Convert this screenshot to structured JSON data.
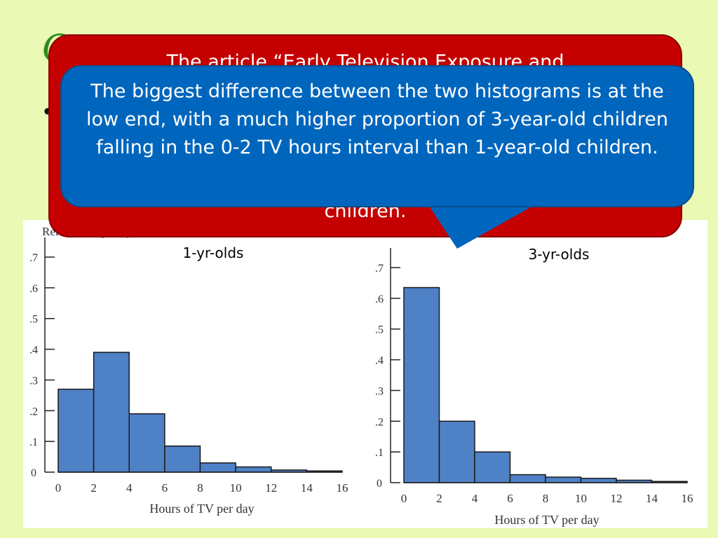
{
  "slide": {
    "title_fragment": "C",
    "bullet": "•"
  },
  "red_callout": {
    "text_top": "The article “Early Television Exposure and",
    "text_bottom": "children."
  },
  "blue_callout": {
    "text": "The biggest difference between the two histograms is at the low end, with a much higher proportion of 3-year-old children falling in the 0-2 TV hours interval than 1-year-old children."
  },
  "colors": {
    "bar_fill": "#4f81c7",
    "bar_stroke": "#1a1a1a",
    "background": "#eaf9b3",
    "red_callout": "#c40000",
    "blue_callout": "#0066bd"
  },
  "chart_data": [
    {
      "type": "bar",
      "title": "1-yr-olds",
      "ylabel": "Relative frequency",
      "xlabel": "Hours of TV per day",
      "bins": [
        [
          0,
          2
        ],
        [
          2,
          4
        ],
        [
          4,
          6
        ],
        [
          6,
          8
        ],
        [
          8,
          10
        ],
        [
          10,
          12
        ],
        [
          12,
          14
        ],
        [
          14,
          16
        ]
      ],
      "values": [
        0.27,
        0.39,
        0.19,
        0.085,
        0.03,
        0.017,
        0.007,
        0.004
      ],
      "x_ticks": [
        "0",
        "2",
        "4",
        "6",
        "8",
        "10",
        "12",
        "14",
        "16"
      ],
      "y_ticks": [
        "0",
        ".1",
        ".2",
        ".3",
        ".4",
        ".5",
        ".6",
        ".7"
      ],
      "xlim": [
        0,
        16
      ],
      "ylim": [
        0,
        0.7
      ],
      "grid": false
    },
    {
      "type": "bar",
      "title": "3-yr-olds",
      "xlabel": "Hours of TV per day",
      "bins": [
        [
          0,
          2
        ],
        [
          2,
          4
        ],
        [
          4,
          6
        ],
        [
          6,
          8
        ],
        [
          8,
          10
        ],
        [
          10,
          12
        ],
        [
          12,
          14
        ],
        [
          14,
          16
        ]
      ],
      "values": [
        0.635,
        0.2,
        0.1,
        0.026,
        0.018,
        0.014,
        0.008,
        0.004
      ],
      "x_ticks": [
        "0",
        "2",
        "4",
        "6",
        "8",
        "10",
        "12",
        "14",
        "16"
      ],
      "y_ticks": [
        "0",
        ".1",
        ".2",
        ".3",
        ".4",
        ".5",
        ".6",
        ".7"
      ],
      "xlim": [
        0,
        16
      ],
      "ylim": [
        0,
        0.7
      ],
      "grid": false
    }
  ]
}
